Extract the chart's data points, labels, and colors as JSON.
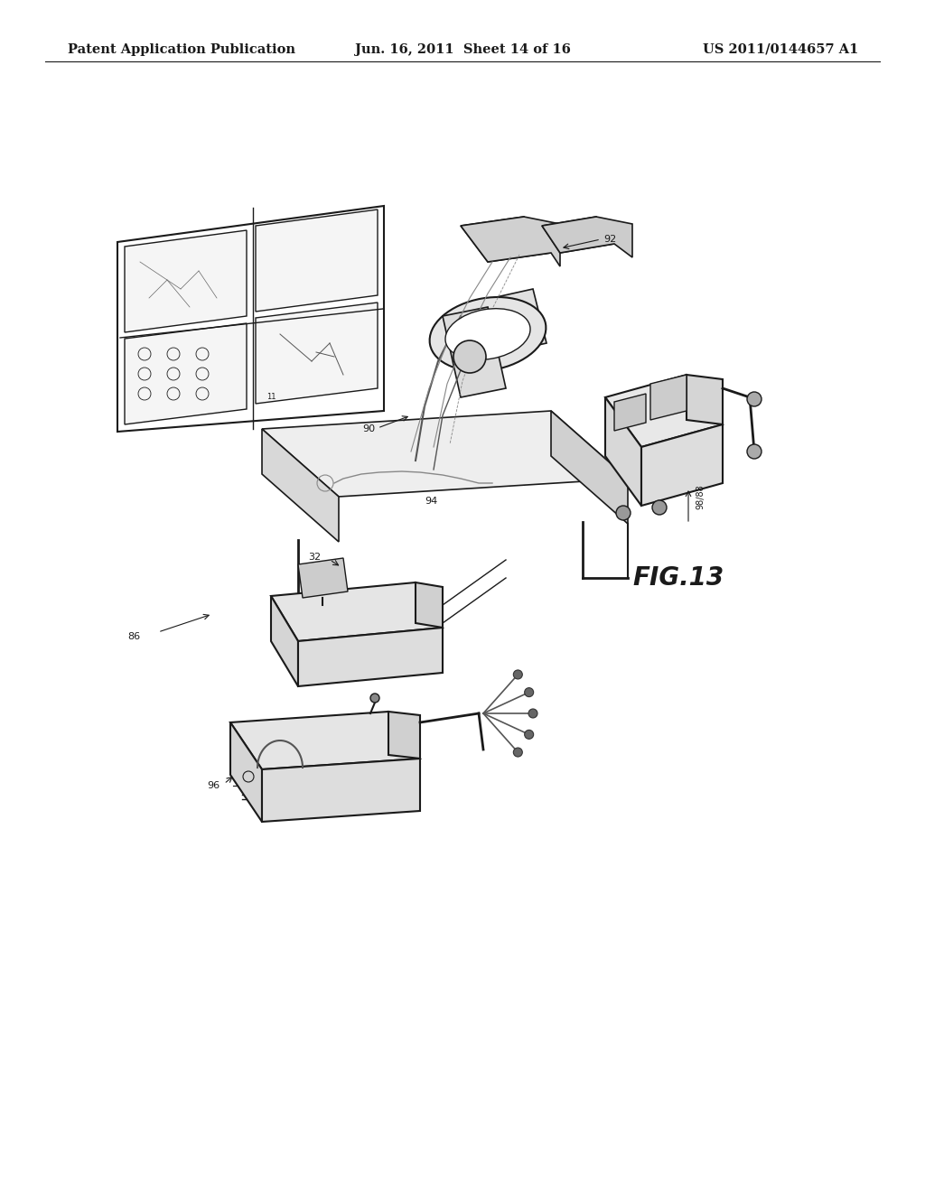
{
  "background_color": "#ffffff",
  "header_left": "Patent Application Publication",
  "header_center": "Jun. 16, 2011  Sheet 14 of 16",
  "header_right": "US 2011/0144657 A1",
  "fig_label": "FIG.13",
  "header_font_size": 10.5,
  "fig_label_font_size": 20,
  "line_color": "#1a1a1a",
  "text_color": "#1a1a1a",
  "light_gray": "#e8e8e8",
  "mid_gray": "#d0d0d0"
}
